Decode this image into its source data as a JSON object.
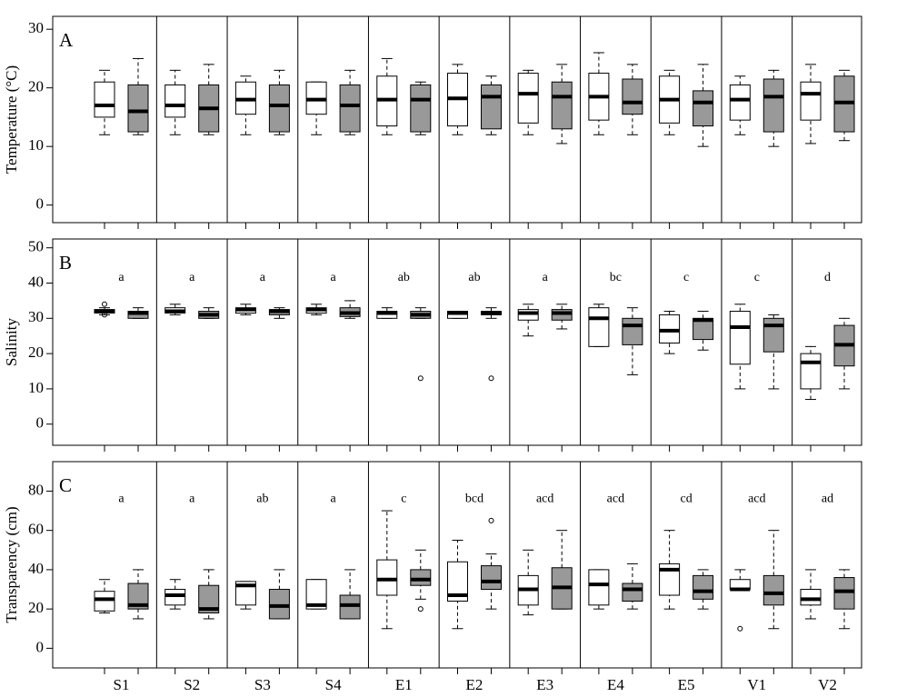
{
  "chart_data": [
    {
      "type": "box",
      "panel_label": "A",
      "ylabel": "Temperature (°C)",
      "ylim": [
        -3,
        32.2
      ],
      "yticks": [
        0,
        10,
        20,
        30
      ],
      "series": [
        {
          "color": "#ffffff",
          "values": [
            [
              12,
              15,
              17,
              21,
              23
            ],
            [
              12,
              15,
              17,
              20.5,
              23
            ],
            [
              12,
              15.5,
              18,
              21,
              22
            ],
            [
              12,
              15.5,
              18,
              21,
              21
            ],
            [
              12,
              13.5,
              18,
              22,
              25
            ],
            [
              12,
              13.5,
              18.2,
              22.5,
              24
            ],
            [
              12,
              14,
              19,
              22.5,
              23
            ],
            [
              12,
              14.5,
              18.5,
              22.5,
              26
            ],
            [
              12,
              14,
              18,
              22,
              23
            ],
            [
              12,
              14.5,
              18,
              20.5,
              22
            ],
            [
              10.5,
              14.5,
              19,
              21,
              24
            ]
          ]
        },
        {
          "color": "#999999",
          "values": [
            [
              12,
              12.5,
              16,
              20.5,
              25
            ],
            [
              12,
              12.5,
              16.5,
              20.5,
              24
            ],
            [
              12,
              12.5,
              17,
              20.5,
              23
            ],
            [
              12,
              12.5,
              17,
              20.5,
              23
            ],
            [
              12,
              12.5,
              18,
              20.5,
              21
            ],
            [
              12,
              13,
              18.5,
              20.5,
              22
            ],
            [
              10.5,
              13,
              18.5,
              21,
              24
            ],
            [
              12,
              15.5,
              17.5,
              21.5,
              24
            ],
            [
              10,
              13.5,
              17.5,
              19.5,
              24
            ],
            [
              10,
              12.5,
              18.5,
              21.5,
              23
            ],
            [
              11,
              12.5,
              17.5,
              22,
              23
            ]
          ]
        }
      ]
    },
    {
      "type": "box",
      "panel_label": "B",
      "ylabel": "Salinity",
      "ylim": [
        -6,
        52.5
      ],
      "yticks": [
        0,
        10,
        20,
        30,
        40,
        50
      ],
      "letters": [
        "a",
        "a",
        "a",
        "a",
        "ab",
        "ab",
        "a",
        "bc",
        "c",
        "c",
        "d"
      ],
      "letter_y": 41.5,
      "series": [
        {
          "color": "#ffffff",
          "values": [
            [
              31,
              31.5,
              32,
              32.5,
              33
            ],
            [
              31,
              31.5,
              32,
              33,
              34
            ],
            [
              31,
              31.5,
              32.5,
              33,
              34
            ],
            [
              31,
              31.5,
              32.5,
              33,
              34
            ],
            [
              30,
              30,
              31.5,
              32,
              33
            ],
            [
              30,
              30,
              31.5,
              32,
              32
            ],
            [
              25,
              29.5,
              31.5,
              32.5,
              34
            ],
            [
              22,
              22,
              30,
              33,
              34
            ],
            [
              20,
              23,
              26.5,
              31,
              32
            ],
            [
              10,
              17,
              27.5,
              32,
              34
            ],
            [
              7,
              10,
              17.5,
              20,
              22
            ]
          ],
          "outliers": [
            [
              34,
              31
            ],
            [],
            [],
            [],
            [],
            [],
            [],
            [],
            [],
            [],
            []
          ]
        },
        {
          "color": "#999999",
          "values": [
            [
              30,
              30,
              31.5,
              32,
              33
            ],
            [
              30,
              30,
              31,
              32,
              33
            ],
            [
              30,
              31,
              32,
              32.5,
              33
            ],
            [
              30,
              30.5,
              31.5,
              33,
              35
            ],
            [
              30,
              30,
              31,
              32,
              33
            ],
            [
              30,
              31,
              31.5,
              32,
              33
            ],
            [
              27,
              29.5,
              31.5,
              32.5,
              34
            ],
            [
              14,
              22.5,
              28,
              30,
              33
            ],
            [
              21,
              24,
              29.5,
              30,
              32
            ],
            [
              10,
              20.5,
              28,
              30,
              31
            ],
            [
              10,
              16.5,
              22.5,
              28,
              30
            ]
          ],
          "outliers": [
            [],
            [],
            [],
            [],
            [
              13
            ],
            [
              13
            ],
            [],
            [],
            [],
            [],
            []
          ]
        }
      ]
    },
    {
      "type": "box",
      "panel_label": "C",
      "ylabel": "Transparency (cm)",
      "ylim": [
        -10,
        95
      ],
      "yticks": [
        0,
        20,
        40,
        60,
        80
      ],
      "categories": [
        "S1",
        "S2",
        "S3",
        "S4",
        "E1",
        "E2",
        "E3",
        "E4",
        "E5",
        "V1",
        "V2"
      ],
      "letters": [
        "a",
        "a",
        "ab",
        "a",
        "c",
        "bcd",
        "acd",
        "acd",
        "cd",
        "acd",
        "ad"
      ],
      "letter_y": 76,
      "series": [
        {
          "color": "#ffffff",
          "values": [
            [
              18,
              19,
              25,
              29,
              35
            ],
            [
              20,
              22,
              27,
              30,
              35
            ],
            [
              20,
              22,
              32,
              34,
              34
            ],
            [
              20,
              20,
              22,
              35,
              35
            ],
            [
              10,
              27,
              35,
              45,
              70
            ],
            [
              10,
              24,
              27,
              44,
              55
            ],
            [
              17,
              22,
              30,
              37,
              50
            ],
            [
              20,
              22,
              32.5,
              40,
              40
            ],
            [
              20,
              27,
              40,
              43,
              60
            ],
            [
              30,
              30,
              30,
              35,
              40
            ],
            [
              15,
              22,
              25,
              30,
              40
            ]
          ],
          "outliers": [
            [],
            [],
            [],
            [],
            [],
            [],
            [],
            [],
            [],
            [
              10
            ],
            []
          ]
        },
        {
          "color": "#999999",
          "values": [
            [
              15,
              20,
              22,
              33,
              40
            ],
            [
              15,
              18,
              20,
              32,
              40
            ],
            [
              15,
              15,
              21.5,
              30,
              40
            ],
            [
              15,
              15,
              22,
              27,
              40
            ],
            [
              25,
              32,
              35,
              40,
              50
            ],
            [
              20,
              30,
              34,
              42,
              48
            ],
            [
              20,
              20,
              31,
              41,
              60
            ],
            [
              20,
              24,
              30,
              33,
              43
            ],
            [
              20,
              25,
              29,
              37,
              40
            ],
            [
              10,
              22,
              28,
              37,
              60
            ],
            [
              10,
              20,
              29,
              36,
              40
            ]
          ],
          "outliers": [
            [],
            [],
            [],
            [],
            [
              20
            ],
            [
              65
            ],
            [],
            [],
            [],
            [],
            []
          ]
        }
      ]
    }
  ]
}
